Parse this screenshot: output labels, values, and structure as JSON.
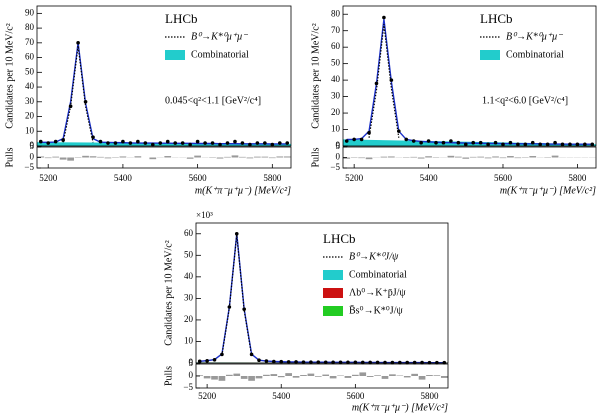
{
  "chart_data": [
    {
      "type": "scatter",
      "annotation": "0.045<q²<1.1 [GeV²/c⁴]",
      "legend_title": "LHCb",
      "y_label": "Candidates per 10 MeV/c²",
      "pull_label": "Pulls",
      "x_label": "m(K⁺π⁻μ⁺μ⁻) [MeV/c²]",
      "xlim": [
        5170,
        5850
      ],
      "xticks": [
        5200,
        5400,
        5600,
        5800
      ],
      "ylim": [
        0,
        95
      ],
      "yticks": [
        0,
        10,
        20,
        30,
        40,
        50,
        60,
        70,
        80,
        90
      ],
      "pull_lim": [
        -5,
        5
      ],
      "pull_ticks": [
        {
          "value": -5,
          "label": "−5"
        },
        0,
        5
      ],
      "x": [
        5180,
        5200,
        5220,
        5240,
        5260,
        5280,
        5300,
        5320,
        5340,
        5360,
        5380,
        5400,
        5420,
        5440,
        5460,
        5480,
        5500,
        5520,
        5540,
        5560,
        5580,
        5600,
        5620,
        5640,
        5660,
        5680,
        5700,
        5720,
        5740,
        5760,
        5780,
        5800,
        5820,
        5840
      ],
      "series": [
        {
          "style": "points",
          "color": "#000000",
          "values": [
            3,
            2,
            3,
            4,
            27,
            70,
            30,
            6,
            3,
            2,
            2,
            3,
            2,
            3,
            2,
            1,
            2,
            3,
            2,
            2,
            1,
            3,
            2,
            2,
            1,
            2,
            3,
            2,
            1,
            2,
            2,
            1,
            2,
            2
          ],
          "pulls": [
            0.5,
            -0.3,
            0.4,
            -1,
            -1.5,
            0.2,
            0.8,
            0.6,
            0.3,
            -0.4,
            -0.2,
            0.5,
            -0.1,
            0.6,
            0,
            -0.8,
            0.1,
            0.7,
            0.1,
            0.1,
            -0.6,
            0.9,
            0.1,
            0.2,
            -0.5,
            0.3,
            1,
            0.3,
            -0.4,
            0.4,
            0.4,
            -0.3,
            0.5,
            0.5
          ]
        },
        {
          "style": "line",
          "color": "#1a2fc8",
          "values": [
            2.5,
            2.5,
            2.7,
            5,
            30,
            70,
            29,
            5,
            2.6,
            2.4,
            2.3,
            2.2,
            2.1,
            2,
            2,
            2,
            1.9,
            1.9,
            1.8,
            1.8,
            1.8,
            1.7,
            1.7,
            1.7,
            1.6,
            1.6,
            1.6,
            1.5,
            1.5,
            1.5,
            1.5,
            1.4,
            1.4,
            1.4
          ]
        },
        {
          "style": "dotted",
          "name": "B⁰→K*⁰μ⁺μ⁻",
          "color": "#000000",
          "x": [
            5240,
            5260,
            5280,
            5300,
            5320
          ],
          "values": [
            2.5,
            27,
            68,
            27,
            2.5
          ]
        },
        {
          "style": "area",
          "name": "Combinatorial",
          "color": "#22cccc",
          "x": [
            5170,
            5850
          ],
          "values": [
            2.6,
            1.4
          ]
        }
      ]
    },
    {
      "type": "scatter",
      "annotation": "1.1<q²<6.0 [GeV²/c⁴]",
      "legend_title": "LHCb",
      "y_label": "Candidates per 10 MeV/c²",
      "pull_label": "Pulls",
      "x_label": "m(K⁺π⁻μ⁺μ⁻) [MeV/c²]",
      "xlim": [
        5170,
        5850
      ],
      "xticks": [
        5200,
        5400,
        5600,
        5800
      ],
      "ylim": [
        0,
        85
      ],
      "yticks": [
        0,
        10,
        20,
        30,
        40,
        50,
        60,
        70,
        80
      ],
      "pull_lim": [
        -5,
        5
      ],
      "pull_ticks": [
        {
          "value": -5,
          "label": "−5"
        },
        0,
        5
      ],
      "x": [
        5180,
        5200,
        5220,
        5240,
        5260,
        5280,
        5300,
        5320,
        5340,
        5360,
        5380,
        5400,
        5420,
        5440,
        5460,
        5480,
        5500,
        5520,
        5540,
        5560,
        5580,
        5600,
        5620,
        5640,
        5660,
        5680,
        5700,
        5720,
        5740,
        5760,
        5780,
        5800,
        5820,
        5840
      ],
      "series": [
        {
          "style": "points",
          "color": "#000000",
          "values": [
            3,
            4,
            4,
            8,
            38,
            78,
            40,
            9,
            4,
            3,
            2,
            3,
            2,
            2,
            3,
            2,
            1,
            2,
            2,
            1,
            2,
            1,
            2,
            1,
            1,
            2,
            1,
            1,
            2,
            1,
            1,
            1,
            1,
            1
          ],
          "pulls": [
            -0.6,
            0.2,
            -0.3,
            -0.8,
            0.1,
            0.4,
            0.5,
            0.1,
            -0.2,
            0.3,
            -0.5,
            0.6,
            -0.2,
            0.1,
            0.8,
            0.4,
            -0.6,
            0.3,
            0.4,
            -0.4,
            0.5,
            -0.3,
            0.7,
            -0.3,
            -0.2,
            0.7,
            -0.1,
            -0.2,
            0.9,
            -0.1,
            -0.1,
            -0.1,
            -0.1,
            -0.1
          ]
        },
        {
          "style": "line",
          "color": "#1a2fc8",
          "values": [
            4,
            4,
            4.5,
            9,
            38,
            77,
            39,
            9,
            4,
            3.2,
            2.8,
            2.5,
            2.3,
            2.1,
            2,
            1.9,
            1.8,
            1.7,
            1.6,
            1.6,
            1.5,
            1.5,
            1.4,
            1.4,
            1.3,
            1.3,
            1.3,
            1.2,
            1.2,
            1.2,
            1.1,
            1.1,
            1.1,
            1.1
          ]
        },
        {
          "style": "dotted",
          "name": "B⁰→K*⁰μ⁺μ⁻",
          "color": "#000000",
          "x": [
            5240,
            5260,
            5280,
            5300,
            5320
          ],
          "values": [
            5,
            34,
            74,
            35,
            5
          ]
        },
        {
          "style": "area",
          "name": "Combinatorial",
          "color": "#22cccc",
          "x": [
            5170,
            5850
          ],
          "values": [
            4,
            1.1
          ]
        }
      ]
    },
    {
      "type": "scatter",
      "legend_title": "LHCb",
      "y_multiplier": "×10³",
      "y_label": "Candidates per 10 MeV/c²",
      "pull_label": "Pulls",
      "x_label": "m(K⁺π⁻μ⁺μ⁻) [MeV/c²]",
      "xlim": [
        5170,
        5850
      ],
      "xticks": [
        5200,
        5400,
        5600,
        5800
      ],
      "ylim": [
        0,
        65
      ],
      "yticks": [
        0,
        10,
        20,
        30,
        40,
        50,
        60
      ],
      "pull_lim": [
        -5,
        5
      ],
      "pull_ticks": [
        {
          "value": -5,
          "label": "−5"
        },
        0,
        5
      ],
      "x": [
        5180,
        5200,
        5220,
        5240,
        5260,
        5280,
        5300,
        5320,
        5340,
        5360,
        5380,
        5400,
        5420,
        5440,
        5460,
        5480,
        5500,
        5520,
        5540,
        5560,
        5580,
        5600,
        5620,
        5640,
        5660,
        5680,
        5700,
        5720,
        5740,
        5760,
        5780,
        5800,
        5820,
        5840
      ],
      "series": [
        {
          "style": "points",
          "color": "#000000",
          "values": [
            0.8,
            1,
            1.5,
            4,
            26,
            60,
            25,
            4,
            1.3,
            0.9,
            0.7,
            0.6,
            0.5,
            0.5,
            0.4,
            0.4,
            0.4,
            0.35,
            0.3,
            0.3,
            0.3,
            0.3,
            0.25,
            0.25,
            0.25,
            0.2,
            0.2,
            0.2,
            0.2,
            0.2,
            0.2,
            0.15,
            0.15,
            0.15
          ],
          "pulls": [
            0.3,
            -1,
            -1.5,
            -2,
            0.5,
            1,
            -1.2,
            -2,
            -1,
            0.5,
            0.8,
            -0.5,
            1.2,
            -0.7,
            0.4,
            1,
            -0.3,
            0.6,
            -1,
            0.2,
            -0.8,
            0.5,
            1.5,
            -0.4,
            0.3,
            -1.2,
            0.7,
            0.2,
            -0.6,
            0.9,
            -1.5,
            0.4,
            0.3,
            -0.8
          ]
        },
        {
          "style": "line",
          "color": "#1a2fc8",
          "values": [
            0.8,
            1.1,
            1.6,
            4.2,
            26,
            60,
            25,
            4.1,
            1.3,
            0.9,
            0.7,
            0.6,
            0.5,
            0.5,
            0.4,
            0.4,
            0.4,
            0.35,
            0.3,
            0.3,
            0.3,
            0.3,
            0.25,
            0.25,
            0.25,
            0.2,
            0.2,
            0.2,
            0.2,
            0.2,
            0.2,
            0.15,
            0.15,
            0.15
          ]
        },
        {
          "style": "dotted",
          "name": "B⁰→K*⁰J/ψ",
          "color": "#000000",
          "x": [
            5240,
            5260,
            5280,
            5300,
            5320
          ],
          "values": [
            3.5,
            25.5,
            59.5,
            24.5,
            3.5
          ]
        },
        {
          "style": "area",
          "name": "Combinatorial",
          "color": "#22cccc",
          "x": [
            5170,
            5850
          ],
          "values": [
            0.3,
            0.1
          ]
        },
        {
          "style": "area",
          "name": "Λb⁰→K⁺p̄J/ψ",
          "color": "#cc1111",
          "x": [
            5170,
            5850
          ],
          "values": [
            0.15,
            0.05
          ]
        },
        {
          "style": "area",
          "name": "B̄s⁰→K*⁰J/ψ",
          "color": "#22cc22",
          "x": [
            5170,
            5850
          ],
          "values": [
            0.1,
            0.05
          ]
        }
      ]
    }
  ]
}
